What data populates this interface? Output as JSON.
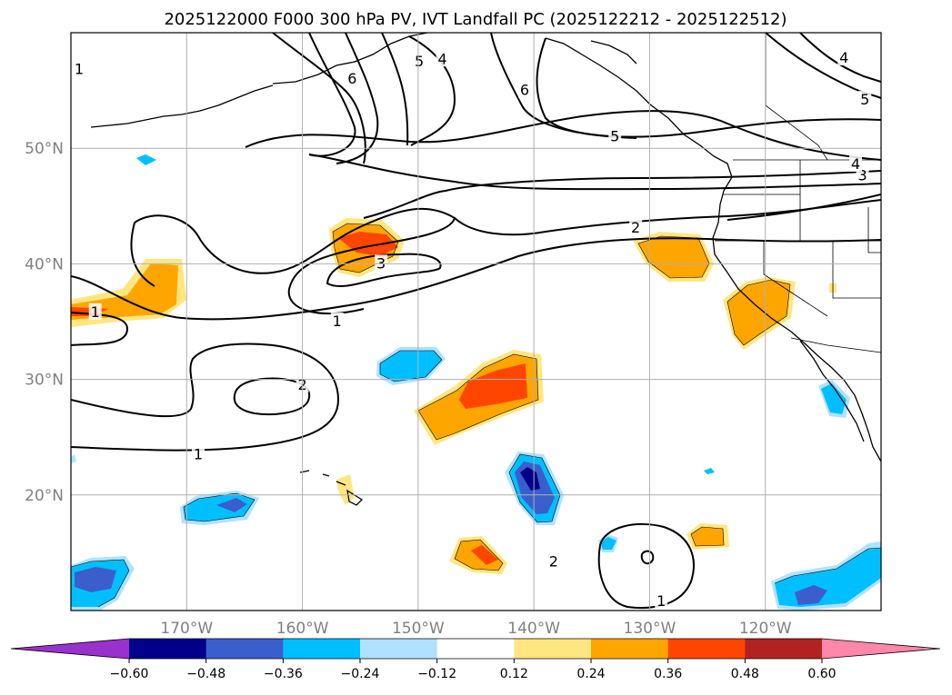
{
  "chart_data": {
    "type": "map_contour",
    "title": "2025122000 F000 300 hPa PV, IVT Landfall PC (2025122212 - 2025122512)",
    "xlim": [
      -180,
      -110
    ],
    "ylim": [
      10,
      60
    ],
    "grid": true,
    "x_ticks": [
      -170,
      -160,
      -150,
      -140,
      -130,
      -120
    ],
    "x_tick_labels": [
      "170°W",
      "160°W",
      "150°W",
      "140°W",
      "130°W",
      "120°W"
    ],
    "y_ticks": [
      20,
      30,
      40,
      50
    ],
    "y_tick_labels": [
      "20°N",
      "30°N",
      "40°N",
      "50°N"
    ],
    "contour_labels": [
      {
        "text": "1",
        "lon": -177.9,
        "lat": 35.8
      },
      {
        "text": "1",
        "lon": -157.0,
        "lat": 35.0
      },
      {
        "text": "1",
        "lon": -169.0,
        "lat": 23.5
      },
      {
        "text": "1",
        "lon": -179.3,
        "lat": 56.8
      },
      {
        "text": "1",
        "lon": -129.0,
        "lat": 10.8
      },
      {
        "text": "2",
        "lon": -160.0,
        "lat": 29.5
      },
      {
        "text": "2",
        "lon": -131.2,
        "lat": 43.1
      },
      {
        "text": "2",
        "lon": -138.3,
        "lat": 14.2
      },
      {
        "text": "3",
        "lon": -153.2,
        "lat": 40.0
      },
      {
        "text": "3",
        "lon": -111.6,
        "lat": 47.6
      },
      {
        "text": "4",
        "lon": -147.9,
        "lat": 57.7
      },
      {
        "text": "4",
        "lon": -112.2,
        "lat": 48.6
      },
      {
        "text": "4",
        "lon": -113.2,
        "lat": 57.8
      },
      {
        "text": "5",
        "lon": -149.9,
        "lat": 57.5
      },
      {
        "text": "5",
        "lon": -133.0,
        "lat": 51.0
      },
      {
        "text": "5",
        "lon": -111.4,
        "lat": 54.2
      },
      {
        "text": "6",
        "lon": -155.7,
        "lat": 56.0
      },
      {
        "text": "6",
        "lon": -140.8,
        "lat": 55.0
      }
    ],
    "colorbar": {
      "levels": [
        -0.6,
        -0.48,
        -0.36,
        -0.24,
        -0.12,
        0.12,
        0.24,
        0.36,
        0.48,
        0.6
      ],
      "tick_labels": [
        "−0.60",
        "−0.48",
        "−0.36",
        "−0.24",
        "−0.12",
        "0.12",
        "0.24",
        "0.36",
        "0.48",
        "0.60"
      ],
      "colors": [
        "#9932cc",
        "#00008b",
        "#3a5fcd",
        "#00bfff",
        "#b0e2ff",
        "#ffffff",
        "#ffe680",
        "#ffa500",
        "#ff4500",
        "#b22222",
        "#ff88aa"
      ]
    }
  }
}
